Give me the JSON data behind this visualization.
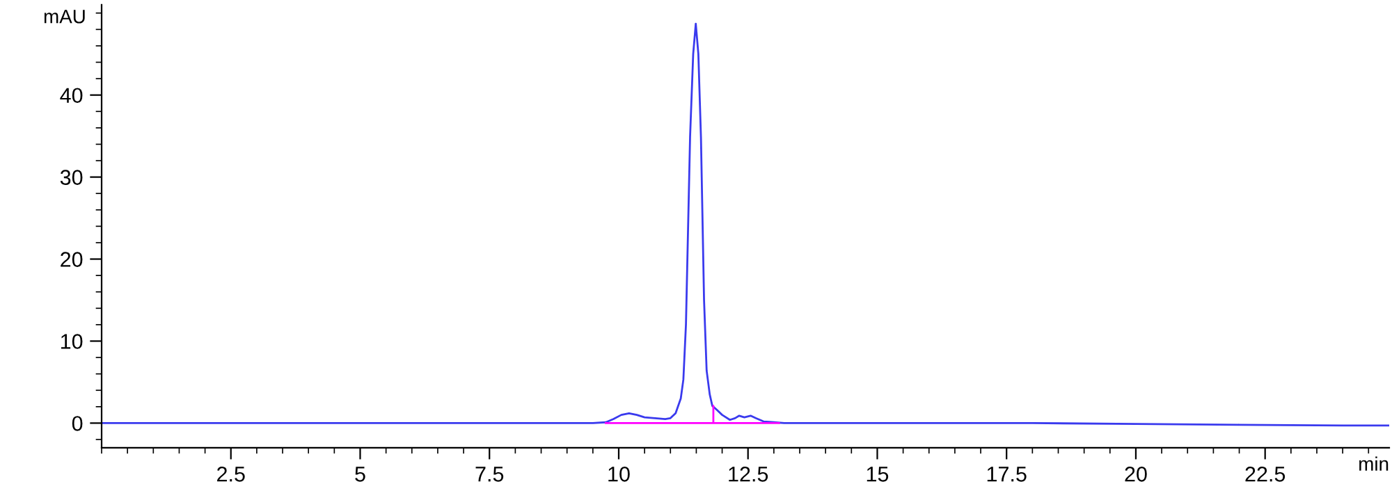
{
  "chart_data": {
    "type": "line",
    "xlabel": "min",
    "ylabel": "mAU",
    "xlim": [
      0,
      24.9
    ],
    "ylim": [
      -3,
      51
    ],
    "xticks": [
      2.5,
      5,
      7.5,
      10,
      12.5,
      15,
      17.5,
      20,
      22.5
    ],
    "yticks": [
      0,
      10,
      20,
      30,
      40
    ],
    "grid": false,
    "marker": "none",
    "line_style": "solid",
    "series": [
      {
        "color": "#3a3aee",
        "x": [
          0,
          2,
          4,
          6,
          8,
          9,
          9.5,
          9.75,
          9.9,
          10.05,
          10.2,
          10.35,
          10.5,
          10.7,
          10.9,
          11.0,
          11.1,
          11.2,
          11.25,
          11.3,
          11.38,
          11.44,
          11.49,
          11.54,
          11.59,
          11.65,
          11.7,
          11.76,
          11.81,
          11.9,
          12.0,
          12.15,
          12.25,
          12.33,
          12.43,
          12.55,
          12.65,
          12.8,
          13.0,
          13.2,
          14,
          16,
          18,
          20,
          22,
          24,
          24.9
        ],
        "values": [
          0,
          0,
          0,
          0,
          0,
          0,
          0,
          0.1,
          0.5,
          1.0,
          1.2,
          1.0,
          0.7,
          0.6,
          0.5,
          0.6,
          1.2,
          3.0,
          5.3,
          12,
          34.9,
          45,
          48.7,
          45,
          34.9,
          15,
          6.4,
          3.5,
          2.1,
          1.6,
          1.0,
          0.4,
          0.6,
          0.9,
          0.7,
          0.9,
          0.6,
          0.2,
          0.1,
          0,
          0,
          0,
          0,
          -0.1,
          -0.2,
          -0.3,
          -0.3
        ]
      },
      {
        "color": "#ff00ff",
        "x": [
          9.75,
          11.83,
          11.83,
          11.83,
          13.1
        ],
        "values": [
          0,
          0,
          2.1,
          0,
          0
        ]
      }
    ]
  }
}
